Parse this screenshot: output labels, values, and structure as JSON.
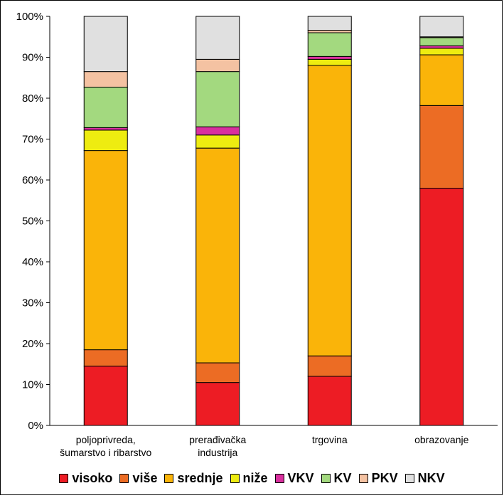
{
  "chart_data": {
    "type": "bar",
    "stacked": true,
    "normalized": true,
    "title": "",
    "xlabel": "",
    "ylabel": "",
    "ylim": [
      0,
      100
    ],
    "yticks": [
      "0%",
      "10%",
      "20%",
      "30%",
      "40%",
      "50%",
      "60%",
      "70%",
      "80%",
      "90%",
      "100%"
    ],
    "categories": [
      [
        "poljoprivreda,",
        "šumarstvo i ribarstvo"
      ],
      [
        "prerađivačka",
        "industrija"
      ],
      [
        "trgovina"
      ],
      [
        "obrazovanje"
      ]
    ],
    "series": [
      {
        "name": "visoko",
        "color": "#ed1c24",
        "values": [
          14.5,
          10.5,
          12.0,
          58.0
        ]
      },
      {
        "name": "više",
        "color": "#ec6c24",
        "values": [
          4.0,
          4.8,
          5.0,
          20.2
        ]
      },
      {
        "name": "srednje",
        "color": "#fab409",
        "values": [
          48.7,
          52.5,
          71.0,
          12.4
        ]
      },
      {
        "name": "niže",
        "color": "#eeec10",
        "values": [
          5.0,
          3.2,
          1.5,
          1.6
        ]
      },
      {
        "name": "VKV",
        "color": "#d92f9e",
        "values": [
          0.6,
          2.0,
          0.7,
          0.6
        ]
      },
      {
        "name": "KV",
        "color": "#a3d97f",
        "values": [
          9.9,
          13.5,
          5.8,
          2.0
        ]
      },
      {
        "name": "PKV",
        "color": "#f4c2a2",
        "values": [
          3.8,
          3.0,
          0.6,
          0.2
        ]
      },
      {
        "name": "NKV",
        "color": "#e0e0e0",
        "values": [
          13.5,
          10.5,
          3.4,
          5.0
        ]
      }
    ],
    "legend_position": "bottom",
    "grid": false
  }
}
